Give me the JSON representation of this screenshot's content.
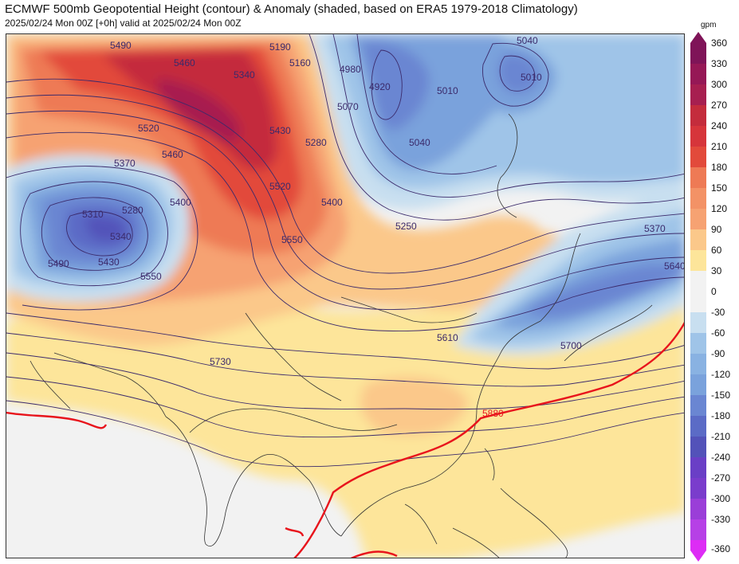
{
  "header": {
    "title": "ECMWF 500mb Geopotential Height (contour) & Anomaly (shaded, based on ERA5 1979-2018 Climatology)",
    "subtitle": "2025/02/24 Mon 00Z [+0h] valid at 2025/02/24 Mon 00Z"
  },
  "colorbar": {
    "unit": "gpm",
    "ticks": [
      "360",
      "330",
      "300",
      "270",
      "240",
      "210",
      "180",
      "150",
      "120",
      "90",
      "60",
      "30",
      "0",
      "-30",
      "-60",
      "-90",
      "-120",
      "-150",
      "-180",
      "-210",
      "-240",
      "-270",
      "-300",
      "-330",
      "-360"
    ]
  },
  "contour_labels": {
    "c5490a": "5490",
    "c5460a": "5460",
    "c5340a": "5340",
    "c5190": "5190",
    "c5160": "5160",
    "c4980": "4980",
    "c4920": "4920",
    "c5070": "5070",
    "c5040a": "5040",
    "c5010a": "5010",
    "c5010b": "5010",
    "c5520a": "5520",
    "c5460b": "5460",
    "c5430a": "5430",
    "c5280a": "5280",
    "c5370a": "5370",
    "c5400a": "5400",
    "c5310": "5310",
    "c5280b": "5280",
    "c5340b": "5340",
    "c5520b": "5520",
    "c5400b": "5400",
    "c5040b": "5040",
    "c5250": "5250",
    "c5550a": "5550",
    "c5490b": "5490",
    "c5430b": "5430",
    "c5550b": "5550",
    "c5370b": "5370",
    "c5640": "5640",
    "c5610": "5610",
    "c5730": "5730",
    "c5700": "5700",
    "c5880": "5880"
  },
  "colors": {
    "contour": "#3b2a6b",
    "line_5880": "#e8141c",
    "positive_anomaly": [
      "#fde59a",
      "#fbc88a",
      "#f6a272",
      "#ee7a55",
      "#e24a3b",
      "#c42c3c",
      "#a71f50",
      "#7f1458"
    ],
    "negative_anomaly": [
      "#c8dff0",
      "#9fc4e8",
      "#7aa2dc",
      "#6a86d2",
      "#5b6bc6",
      "#5352b9",
      "#7a3ccc",
      "#b640e6",
      "#dd2cf5"
    ],
    "neutral": "#f2f2f2"
  }
}
